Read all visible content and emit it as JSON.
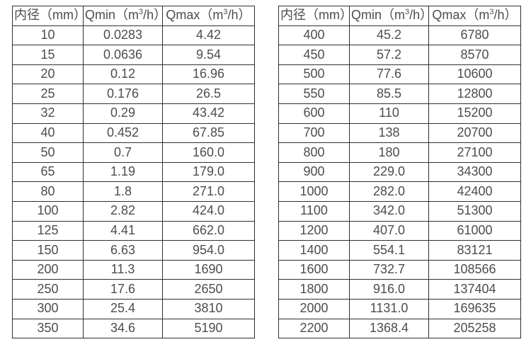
{
  "page": {
    "background_color": "#ffffff",
    "border_color": "#2f2f2f",
    "text_color": "#4d4d4d"
  },
  "tables": [
    {
      "headers": [
        {
          "pre": "内径（mm）",
          "sup": "",
          "post": ""
        },
        {
          "pre": "Qmin（m",
          "sup": "3",
          "post": "/h）"
        },
        {
          "pre": "Qmax（m",
          "sup": "3",
          "post": "/h）"
        }
      ],
      "rows": [
        [
          "10",
          "0.0283",
          "4.42"
        ],
        [
          "15",
          "0.0636",
          "9.54"
        ],
        [
          "20",
          "0.12",
          "16.96"
        ],
        [
          "25",
          "0.176",
          "26.5"
        ],
        [
          "32",
          "0.29",
          "43.42"
        ],
        [
          "40",
          "0.452",
          "67.85"
        ],
        [
          "50",
          "0.7",
          "160.0"
        ],
        [
          "65",
          "1.19",
          "179.0"
        ],
        [
          "80",
          "1.8",
          "271.0"
        ],
        [
          "100",
          "2.82",
          "424.0"
        ],
        [
          "125",
          "4.41",
          "662.0"
        ],
        [
          "150",
          "6.63",
          "954.0"
        ],
        [
          "200",
          "11.3",
          "1690"
        ],
        [
          "250",
          "17.6",
          "2650"
        ],
        [
          "300",
          "25.4",
          "3810"
        ],
        [
          "350",
          "34.6",
          "5190"
        ]
      ]
    },
    {
      "headers": [
        {
          "pre": "内径（mm）",
          "sup": "",
          "post": ""
        },
        {
          "pre": "Qmin（m",
          "sup": "3",
          "post": "/h）"
        },
        {
          "pre": "Qmax（m",
          "sup": "3",
          "post": "/h）"
        }
      ],
      "rows": [
        [
          "400",
          "45.2",
          "6780"
        ],
        [
          "450",
          "57.2",
          "8570"
        ],
        [
          "500",
          "77.6",
          "10600"
        ],
        [
          "550",
          "85.5",
          "12800"
        ],
        [
          "600",
          "110",
          "15200"
        ],
        [
          "700",
          "138",
          "20700"
        ],
        [
          "800",
          "180",
          "27100"
        ],
        [
          "900",
          "229.0",
          "34300"
        ],
        [
          "1000",
          "282.0",
          "42400"
        ],
        [
          "1100",
          "342.0",
          "51300"
        ],
        [
          "1200",
          "407.0",
          "61000"
        ],
        [
          "1400",
          "554.1",
          "83121"
        ],
        [
          "1600",
          "732.7",
          "108566"
        ],
        [
          "1800",
          "916.0",
          "137404"
        ],
        [
          "2000",
          "1131.0",
          "169635"
        ],
        [
          "2200",
          "1368.4",
          "205258"
        ]
      ]
    }
  ]
}
